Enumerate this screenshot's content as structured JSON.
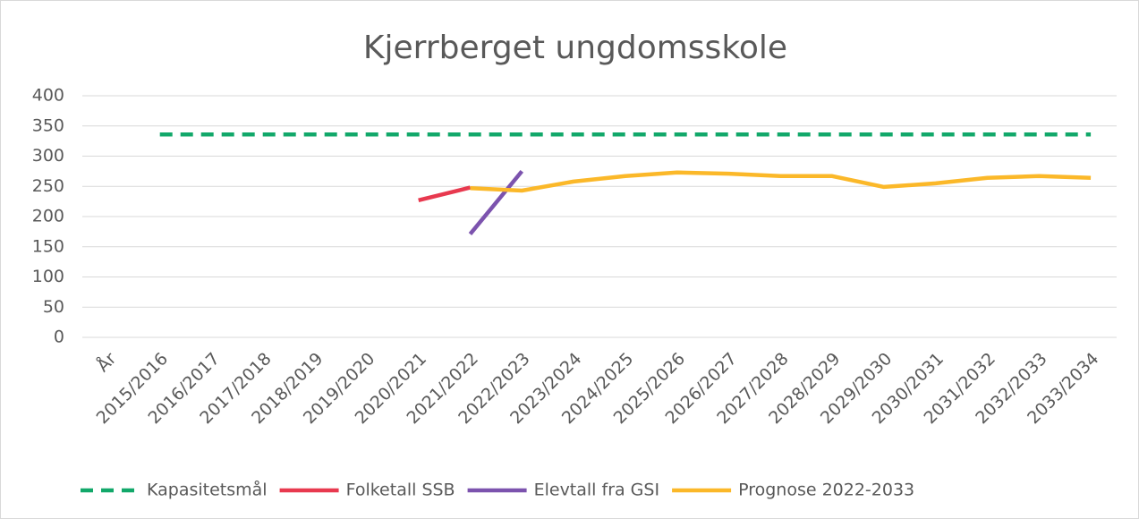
{
  "chart_data": {
    "type": "line",
    "title": "Kjerrberget ungdomsskole",
    "categories": [
      "År",
      "2015/2016",
      "2016/2017",
      "2017/2018",
      "2018/2019",
      "2019/2020",
      "2020/2021",
      "2021/2022",
      "2022/2023",
      "2023/2024",
      "2024/2025",
      "2025/2026",
      "2026/2027",
      "2027/2028",
      "2028/2029",
      "2029/2030",
      "2030/2031",
      "2031/2032",
      "2032/2033",
      "2033/2034"
    ],
    "series": [
      {
        "name": "Kapasitetsmål",
        "color": "#12a86a",
        "dash": true,
        "values": [
          null,
          336,
          336,
          336,
          336,
          336,
          336,
          336,
          336,
          336,
          336,
          336,
          336,
          336,
          336,
          336,
          336,
          336,
          336,
          336
        ]
      },
      {
        "name": "Folketall SSB",
        "color": "#e8394f",
        "values": [
          null,
          null,
          null,
          null,
          null,
          null,
          227,
          248,
          null,
          null,
          null,
          null,
          null,
          null,
          null,
          null,
          null,
          null,
          null,
          null
        ]
      },
      {
        "name": "Elevtall fra GSI",
        "color": "#7c53ae",
        "values": [
          null,
          null,
          null,
          null,
          null,
          null,
          null,
          171,
          275,
          null,
          null,
          null,
          null,
          null,
          null,
          null,
          null,
          null,
          null,
          null
        ]
      },
      {
        "name": "Prognose 2022-2033",
        "color": "#fbb829",
        "values": [
          null,
          null,
          null,
          null,
          null,
          null,
          null,
          247,
          243,
          258,
          267,
          273,
          271,
          267,
          267,
          249,
          255,
          264,
          267,
          264
        ]
      }
    ],
    "ylim": [
      0,
      400
    ],
    "yticks": [
      0,
      50,
      100,
      150,
      200,
      250,
      300,
      350,
      400
    ],
    "grid": true,
    "legend": "bottom"
  }
}
